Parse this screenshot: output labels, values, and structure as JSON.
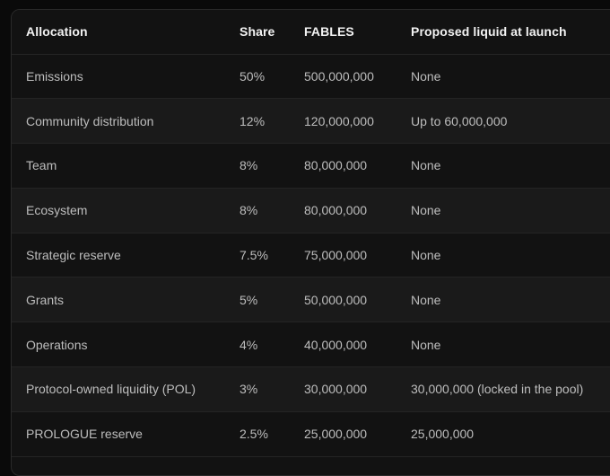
{
  "columns": [
    "Allocation",
    "Share",
    "FABLES",
    "Proposed liquid at launch"
  ],
  "rows": [
    [
      "Emissions",
      "50%",
      "500,000,000",
      "None"
    ],
    [
      "Community distribution",
      "12%",
      "120,000,000",
      "Up to 60,000,000"
    ],
    [
      "Team",
      "8%",
      "80,000,000",
      "None"
    ],
    [
      "Ecosystem",
      "8%",
      "80,000,000",
      "None"
    ],
    [
      "Strategic reserve",
      "7.5%",
      "75,000,000",
      "None"
    ],
    [
      "Grants",
      "5%",
      "50,000,000",
      "None"
    ],
    [
      "Operations",
      "4%",
      "40,000,000",
      "None"
    ],
    [
      "Protocol-owned liquidity (POL)",
      "3%",
      "30,000,000",
      "30,000,000 (locked in the pool)"
    ],
    [
      "PROLOGUE reserve",
      "2.5%",
      "25,000,000",
      "25,000,000"
    ]
  ]
}
